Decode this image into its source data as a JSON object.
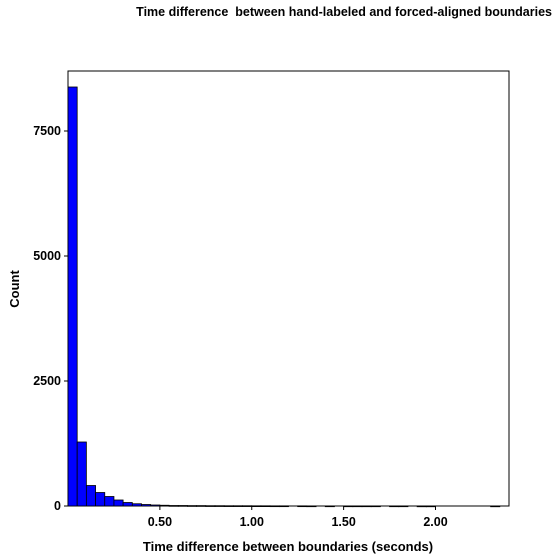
{
  "chart_data": {
    "type": "bar",
    "title": "Time difference  between hand-labeled and forced-aligned boundaries",
    "xlabel": "Time difference between boundaries (seconds)",
    "ylabel": "Count",
    "xlim": [
      0.0,
      2.4
    ],
    "ylim": [
      0,
      8700
    ],
    "bin_width": 0.05,
    "x_ticks": [
      0.5,
      1.0,
      1.5,
      2.0
    ],
    "x_tick_labels": [
      "0.50",
      "1.00",
      "1.50",
      "2.00"
    ],
    "y_ticks": [
      0,
      2500,
      5000,
      7500
    ],
    "y_tick_labels": [
      "0",
      "2500",
      "5000",
      "7500"
    ],
    "bar_color": "#0000ff",
    "bins": [
      {
        "x0": 0.0,
        "value": 8380
      },
      {
        "x0": 0.05,
        "value": 1280
      },
      {
        "x0": 0.1,
        "value": 410
      },
      {
        "x0": 0.15,
        "value": 270
      },
      {
        "x0": 0.2,
        "value": 190
      },
      {
        "x0": 0.25,
        "value": 120
      },
      {
        "x0": 0.3,
        "value": 70
      },
      {
        "x0": 0.35,
        "value": 45
      },
      {
        "x0": 0.4,
        "value": 30
      },
      {
        "x0": 0.45,
        "value": 20
      },
      {
        "x0": 0.5,
        "value": 15
      },
      {
        "x0": 0.55,
        "value": 10
      },
      {
        "x0": 0.6,
        "value": 10
      },
      {
        "x0": 0.65,
        "value": 8
      },
      {
        "x0": 0.7,
        "value": 8
      },
      {
        "x0": 0.75,
        "value": 6
      },
      {
        "x0": 0.8,
        "value": 6
      },
      {
        "x0": 0.85,
        "value": 5
      },
      {
        "x0": 0.9,
        "value": 5
      },
      {
        "x0": 0.95,
        "value": 5
      },
      {
        "x0": 1.0,
        "value": 4
      },
      {
        "x0": 1.05,
        "value": 4
      },
      {
        "x0": 1.1,
        "value": 3
      },
      {
        "x0": 1.15,
        "value": 3
      },
      {
        "x0": 1.25,
        "value": 3
      },
      {
        "x0": 1.3,
        "value": 2
      },
      {
        "x0": 1.4,
        "value": 2
      },
      {
        "x0": 1.5,
        "value": 2
      },
      {
        "x0": 1.55,
        "value": 2
      },
      {
        "x0": 1.6,
        "value": 2
      },
      {
        "x0": 1.65,
        "value": 2
      },
      {
        "x0": 1.75,
        "value": 2
      },
      {
        "x0": 1.8,
        "value": 2
      },
      {
        "x0": 1.9,
        "value": 1
      },
      {
        "x0": 1.95,
        "value": 1
      },
      {
        "x0": 2.3,
        "value": 1
      }
    ]
  }
}
